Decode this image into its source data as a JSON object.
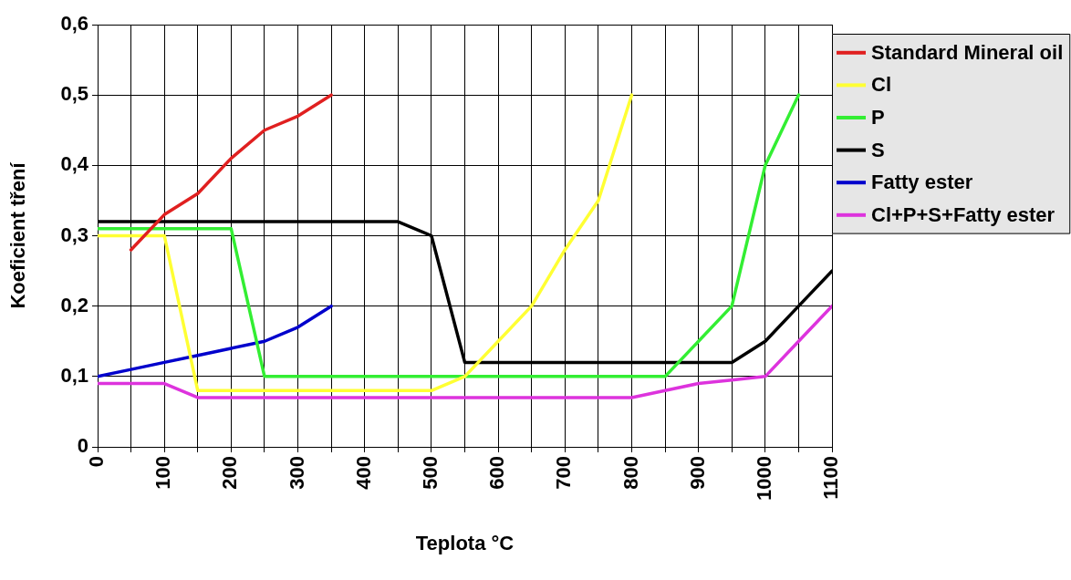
{
  "chart_data": {
    "type": "line",
    "xlabel": "Teplota °C",
    "ylabel": "Koeficient tření",
    "xlim": [
      0,
      1100
    ],
    "xticks": [
      0,
      {
        "value": 50,
        "label": null
      },
      100,
      {
        "value": 150,
        "label": null
      },
      200,
      {
        "value": 250,
        "label": null
      },
      300,
      {
        "value": 350,
        "label": null
      },
      400,
      {
        "value": 450,
        "label": null
      },
      500,
      {
        "value": 550,
        "label": null
      },
      600,
      {
        "value": 650,
        "label": null
      },
      700,
      {
        "value": 750,
        "label": null
      },
      800,
      {
        "value": 850,
        "label": null
      },
      900,
      {
        "value": 950,
        "label": null
      },
      1000,
      {
        "value": 1050,
        "label": null
      },
      1100
    ],
    "ylim": [
      0,
      0.6
    ],
    "yticks": [
      0,
      {
        "value": 0.1,
        "label": "0,1"
      },
      {
        "value": 0.2,
        "label": "0,2"
      },
      {
        "value": 0.3,
        "label": "0,3"
      },
      {
        "value": 0.4,
        "label": "0,4"
      },
      {
        "value": 0.5,
        "label": "0,5"
      },
      {
        "value": 0.6,
        "label": "0,6"
      }
    ],
    "grid": true,
    "legend": "right",
    "line_style": "solid",
    "series": [
      {
        "name": "Standard Mineral oil",
        "color": "#e02020",
        "x": [
          50,
          100,
          150,
          200,
          250,
          300,
          350
        ],
        "values": [
          0.28,
          0.33,
          0.36,
          0.41,
          0.45,
          0.47,
          0.5
        ]
      },
      {
        "name": "Cl",
        "color": "#ffff33",
        "x": [
          0,
          100,
          150,
          500,
          550,
          600,
          650,
          700,
          750,
          800
        ],
        "values": [
          0.3,
          0.3,
          0.08,
          0.08,
          0.1,
          0.15,
          0.2,
          0.28,
          0.35,
          0.5
        ]
      },
      {
        "name": "P",
        "color": "#33ee33",
        "x": [
          0,
          200,
          250,
          850,
          900,
          950,
          1000,
          1050
        ],
        "values": [
          0.31,
          0.31,
          0.1,
          0.1,
          0.15,
          0.2,
          0.4,
          0.5
        ]
      },
      {
        "name": "S",
        "color": "#000000",
        "x": [
          0,
          450,
          500,
          550,
          950,
          1000,
          1050,
          1100
        ],
        "values": [
          0.32,
          0.32,
          0.3,
          0.12,
          0.12,
          0.15,
          0.2,
          0.25
        ]
      },
      {
        "name": "Fatty ester",
        "color": "#0000cc",
        "x": [
          0,
          50,
          100,
          150,
          200,
          250,
          300,
          350
        ],
        "values": [
          0.1,
          0.11,
          0.12,
          0.13,
          0.14,
          0.15,
          0.17,
          0.2
        ]
      },
      {
        "name": "Cl+P+S+Fatty ester",
        "color": "#dd33dd",
        "x": [
          0,
          100,
          150,
          800,
          850,
          900,
          950,
          1000,
          1050,
          1100
        ],
        "values": [
          0.09,
          0.09,
          0.07,
          0.07,
          0.08,
          0.09,
          0.095,
          0.1,
          0.15,
          0.2
        ]
      }
    ]
  }
}
